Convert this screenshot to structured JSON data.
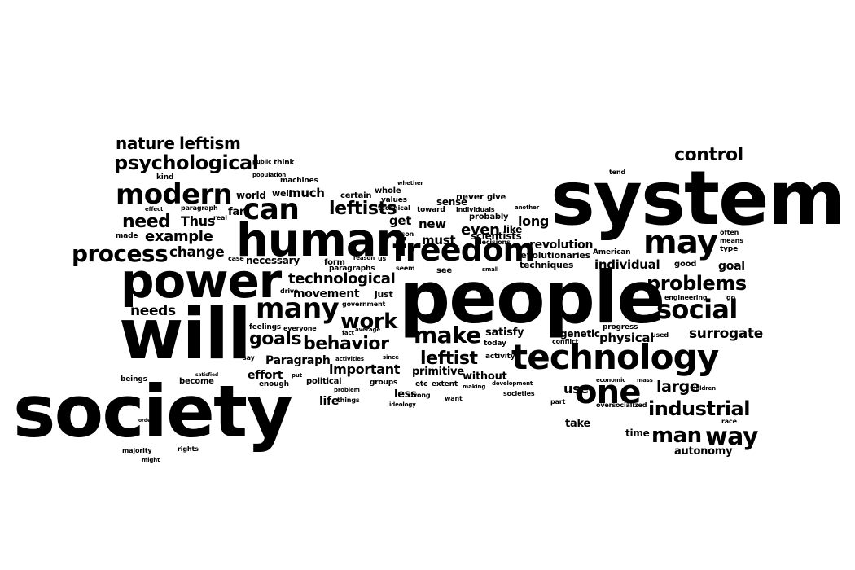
{
  "canvas": {
    "background": "#ffffff",
    "ink": "#000000"
  },
  "words": [
    "system",
    "people",
    "society",
    "will",
    "power",
    "human",
    "technology",
    "freedom",
    "can",
    "modern",
    "may",
    "one",
    "many",
    "social",
    "process",
    "psychological",
    "make",
    "control",
    "problems",
    "industrial",
    "man",
    "way",
    "leftist",
    "behavior",
    "work",
    "goals",
    "nature",
    "leftism",
    "leftists",
    "need",
    "example",
    "technological",
    "needs",
    "surrogate",
    "large",
    "Thus",
    "change",
    "even",
    "must",
    "get",
    "new",
    "revolution",
    "long",
    "individual",
    "physical",
    "movement",
    "important",
    "Paragraph",
    "effort",
    "use",
    "take",
    "goal",
    "satisfy",
    "genetic",
    "autonomy",
    "time",
    "life",
    "less",
    "primitive",
    "without",
    "much",
    "far",
    "world",
    "well",
    "certain",
    "whole",
    "values",
    "sense",
    "never",
    "give",
    "probably",
    "revolutionaries",
    "techniques",
    "scientists",
    "like",
    "made",
    "case",
    "form",
    "paragraphs",
    "necessary",
    "kind",
    "effect",
    "paragraph",
    "real",
    "public",
    "think",
    "population",
    "machines",
    "technical",
    "toward",
    "individuals",
    "whether",
    "another",
    "tend",
    "often",
    "means",
    "type",
    "American",
    "good",
    "reason",
    "us",
    "person",
    "decisions",
    "seem",
    "see",
    "small",
    "today",
    "activity",
    "conflict",
    "progress",
    "engineering",
    "go",
    "used",
    "drive",
    "just",
    "government",
    "average",
    "fact",
    "feelings",
    "everyone",
    "say",
    "activities",
    "since",
    "put",
    "political",
    "groups",
    "etc",
    "extent",
    "making",
    "development",
    "economic",
    "mass",
    "children",
    "beings",
    "become",
    "enough",
    "problem",
    "strong",
    "societies",
    "part",
    "want",
    "things",
    "ideology",
    "oversocialized",
    "race",
    "satisfied",
    "order",
    "majority",
    "rights",
    "might",
    "even"
  ]
}
